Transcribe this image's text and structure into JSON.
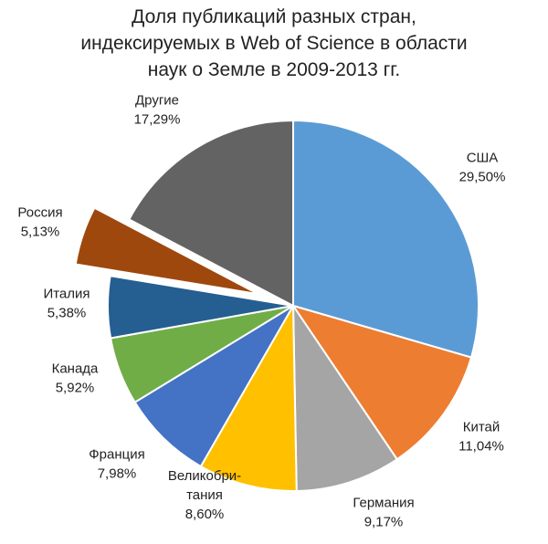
{
  "chart_data": {
    "type": "pie",
    "title_lines": [
      "Доля публикаций разных стран,",
      "индексируемых в Web of Science в области",
      "наук о Земле в 2009-2013 гг."
    ],
    "slices": [
      {
        "name": "США",
        "label_lines": [
          "США"
        ],
        "value_text": "29,50%",
        "value": 29.5,
        "color": "#5B9BD5",
        "exploded": false
      },
      {
        "name": "Китай",
        "label_lines": [
          "Китай"
        ],
        "value_text": "11,04%",
        "value": 11.04,
        "color": "#ED7D31",
        "exploded": false
      },
      {
        "name": "Германия",
        "label_lines": [
          "Германия"
        ],
        "value_text": "9,17%",
        "value": 9.17,
        "color": "#A5A5A5",
        "exploded": false
      },
      {
        "name": "Великобритания",
        "label_lines": [
          "Великобри-",
          "тания"
        ],
        "value_text": "8,60%",
        "value": 8.6,
        "color": "#FFC000",
        "exploded": false
      },
      {
        "name": "Франция",
        "label_lines": [
          "Франция"
        ],
        "value_text": "7,98%",
        "value": 7.98,
        "color": "#4472C4",
        "exploded": false
      },
      {
        "name": "Канада",
        "label_lines": [
          "Канада"
        ],
        "value_text": "5,92%",
        "value": 5.92,
        "color": "#70AD47",
        "exploded": false
      },
      {
        "name": "Италия",
        "label_lines": [
          "Италия"
        ],
        "value_text": "5,38%",
        "value": 5.38,
        "color": "#255E91",
        "exploded": false
      },
      {
        "name": "Россия",
        "label_lines": [
          "Россия"
        ],
        "value_text": "5,13%",
        "value": 5.13,
        "color": "#9E480E",
        "exploded": true
      },
      {
        "name": "Другие",
        "label_lines": [
          "Другие"
        ],
        "value_text": "17,29%",
        "value": 17.29,
        "color": "#636363",
        "exploded": false
      }
    ],
    "start_angle_deg": 0,
    "direction": "clockwise"
  }
}
